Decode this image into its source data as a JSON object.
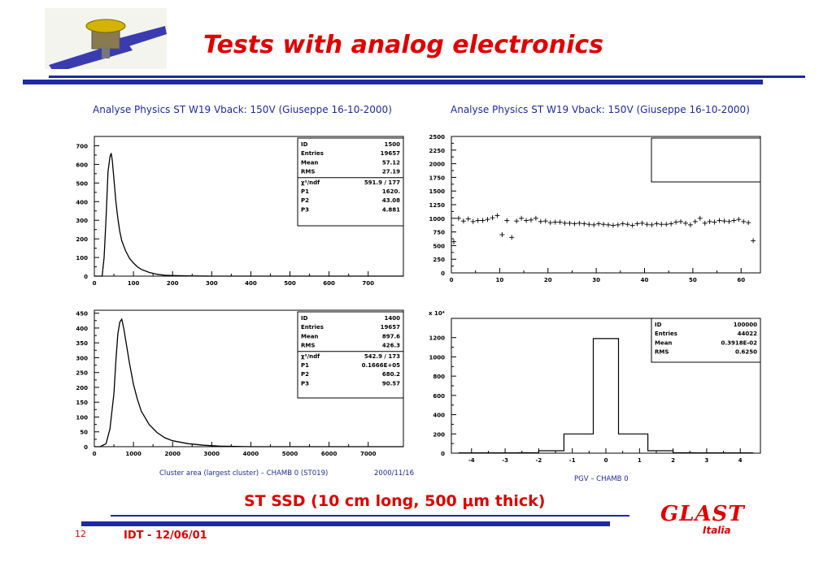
{
  "slide": {
    "title": "Tests with analog electronics",
    "subtitle": "ST SSD (10 cm long,  500 μm thick)",
    "slide_number": "12",
    "footer": "IDT - 12/06/01",
    "logo_text": "GLAST",
    "logo_sub": "Italia"
  },
  "panel_titles": {
    "left": "Analyse Physics ST W19 Vback: 150V (Giuseppe 16-10-2000)",
    "right": "Analyse Physics ST W19 Vback: 150V (Giuseppe 16-10-2000)"
  },
  "captions": {
    "bottom_left_xlabel": "Cluster area (largest cluster) – CHAMB 0 (ST019)",
    "bottom_left_date": "2000/11/16",
    "bottom_right_xlabel": "PGV – CHAMB 0"
  },
  "colors": {
    "accent_red": "#e00000",
    "rule_blue": "#1e2aa0"
  },
  "chart_data": [
    {
      "type": "line",
      "id": "hist-top-left",
      "xlim": [
        0,
        790
      ],
      "ylim": [
        0,
        750
      ],
      "xticks": [
        "0",
        "100",
        "200",
        "300",
        "400",
        "500",
        "600",
        "700"
      ],
      "xtick_values": [
        0,
        100,
        200,
        300,
        400,
        500,
        600,
        700
      ],
      "yticks": [
        "0",
        "100",
        "200",
        "300",
        "400",
        "500",
        "600",
        "700"
      ],
      "ytick_values": [
        0,
        100,
        200,
        300,
        400,
        500,
        600,
        700
      ],
      "x": [
        0,
        20,
        25,
        30,
        35,
        40,
        43,
        46,
        50,
        55,
        60,
        65,
        70,
        80,
        90,
        100,
        110,
        120,
        140,
        160,
        180,
        200,
        250,
        300,
        400,
        790
      ],
      "y": [
        0,
        0,
        100,
        310,
        560,
        640,
        660,
        620,
        520,
        400,
        310,
        240,
        190,
        135,
        95,
        70,
        50,
        36,
        20,
        10,
        5,
        3,
        1,
        0,
        0,
        0
      ],
      "stats": [
        [
          "ID",
          "1500"
        ],
        [
          "Entries",
          "19657"
        ],
        [
          "Mean",
          "57.12"
        ],
        [
          "RMS",
          "27.19"
        ]
      ],
      "fit": [
        [
          "χ²/ndf",
          "591.9  /  177"
        ],
        [
          "P1",
          "1620."
        ],
        [
          "P2",
          "43.08"
        ],
        [
          "P3",
          "4.881"
        ]
      ]
    },
    {
      "type": "scatter",
      "id": "hist-top-right",
      "xlim": [
        0,
        64
      ],
      "ylim": [
        0,
        2500
      ],
      "xticks": [
        "0",
        "10",
        "20",
        "30",
        "40",
        "50",
        "60"
      ],
      "xtick_values": [
        0,
        10,
        20,
        30,
        40,
        50,
        60
      ],
      "yticks": [
        "0",
        "250",
        "500",
        "750",
        "1000",
        "1250",
        "1500",
        "1750",
        "2000",
        "2250",
        "2500"
      ],
      "ytick_values": [
        0,
        250,
        500,
        750,
        1000,
        1250,
        1500,
        1750,
        2000,
        2250,
        2500
      ],
      "x": [
        0,
        1,
        2,
        3,
        4,
        5,
        6,
        7,
        8,
        9,
        10,
        11,
        12,
        13,
        14,
        15,
        16,
        17,
        18,
        19,
        20,
        21,
        22,
        23,
        24,
        25,
        26,
        27,
        28,
        29,
        30,
        31,
        32,
        33,
        34,
        35,
        36,
        37,
        38,
        39,
        40,
        41,
        42,
        43,
        44,
        45,
        46,
        47,
        48,
        49,
        50,
        51,
        52,
        53,
        54,
        55,
        56,
        57,
        58,
        59,
        60,
        61,
        62
      ],
      "y": [
        570,
        1000,
        950,
        990,
        940,
        960,
        960,
        980,
        1010,
        1050,
        700,
        960,
        650,
        950,
        1000,
        960,
        970,
        1000,
        940,
        950,
        920,
        930,
        930,
        910,
        910,
        900,
        910,
        900,
        890,
        880,
        900,
        890,
        880,
        870,
        880,
        900,
        890,
        870,
        900,
        910,
        890,
        880,
        900,
        890,
        890,
        900,
        930,
        940,
        910,
        880,
        940,
        1000,
        910,
        940,
        930,
        960,
        950,
        940,
        960,
        980,
        940,
        920,
        590
      ]
    },
    {
      "type": "line",
      "id": "hist-bottom-left",
      "xlim": [
        0,
        7900
      ],
      "ylim": [
        0,
        460
      ],
      "xticks": [
        "0",
        "1000",
        "2000",
        "3000",
        "4000",
        "5000",
        "6000",
        "7000"
      ],
      "xtick_values": [
        0,
        1000,
        2000,
        3000,
        4000,
        5000,
        6000,
        7000
      ],
      "yticks": [
        "0",
        "50",
        "100",
        "150",
        "200",
        "250",
        "300",
        "350",
        "400",
        "450"
      ],
      "ytick_values": [
        0,
        50,
        100,
        150,
        200,
        250,
        300,
        350,
        400,
        450
      ],
      "x": [
        0,
        150,
        300,
        400,
        500,
        550,
        600,
        650,
        700,
        750,
        800,
        900,
        1000,
        1100,
        1200,
        1400,
        1600,
        1800,
        2000,
        2400,
        2800,
        3200,
        4000,
        7900
      ],
      "y": [
        0,
        0,
        10,
        60,
        180,
        290,
        380,
        420,
        430,
        400,
        360,
        280,
        210,
        160,
        120,
        75,
        48,
        30,
        20,
        10,
        5,
        2,
        0,
        0
      ],
      "stats": [
        [
          "ID",
          "1400"
        ],
        [
          "Entries",
          "19657"
        ],
        [
          "Mean",
          "897.6"
        ],
        [
          "RMS",
          "426.3"
        ]
      ],
      "fit": [
        [
          "χ²/ndf",
          "542.9  /  173"
        ],
        [
          "P1",
          "0.1666E+05"
        ],
        [
          "P2",
          "680.2"
        ],
        [
          "P3",
          "90.57"
        ]
      ]
    },
    {
      "type": "bar",
      "id": "hist-bottom-right",
      "scale_label": "x 10⁴",
      "xlim": [
        -4.6,
        4.6
      ],
      "ylim": [
        0,
        1400
      ],
      "xticks": [
        "-4",
        "-3",
        "-2",
        "-1",
        "0",
        "1",
        "2",
        "3",
        "4"
      ],
      "xtick_values": [
        -4,
        -3,
        -2,
        -1,
        0,
        1,
        2,
        3,
        4
      ],
      "yticks": [
        "0",
        "200",
        "400",
        "600",
        "800",
        "1000",
        "1200"
      ],
      "ytick_values": [
        0,
        200,
        400,
        600,
        800,
        1000,
        1200
      ],
      "bins": [
        [
          -4.375,
          -3.5,
          3
        ],
        [
          -3.5,
          -2.625,
          3
        ],
        [
          -2.625,
          -2.0,
          4
        ],
        [
          -2.0,
          -1.25,
          25
        ],
        [
          -1.25,
          -0.375,
          200
        ],
        [
          -0.375,
          0.375,
          1190
        ],
        [
          0.375,
          1.25,
          200
        ],
        [
          1.25,
          2.0,
          25
        ],
        [
          2.0,
          2.625,
          4
        ],
        [
          2.625,
          4.375,
          3
        ]
      ],
      "stats": [
        [
          "ID",
          "100000"
        ],
        [
          "Entries",
          "44022"
        ],
        [
          "Mean",
          "0.3918E-02"
        ],
        [
          "RMS",
          "0.6250"
        ]
      ]
    }
  ]
}
